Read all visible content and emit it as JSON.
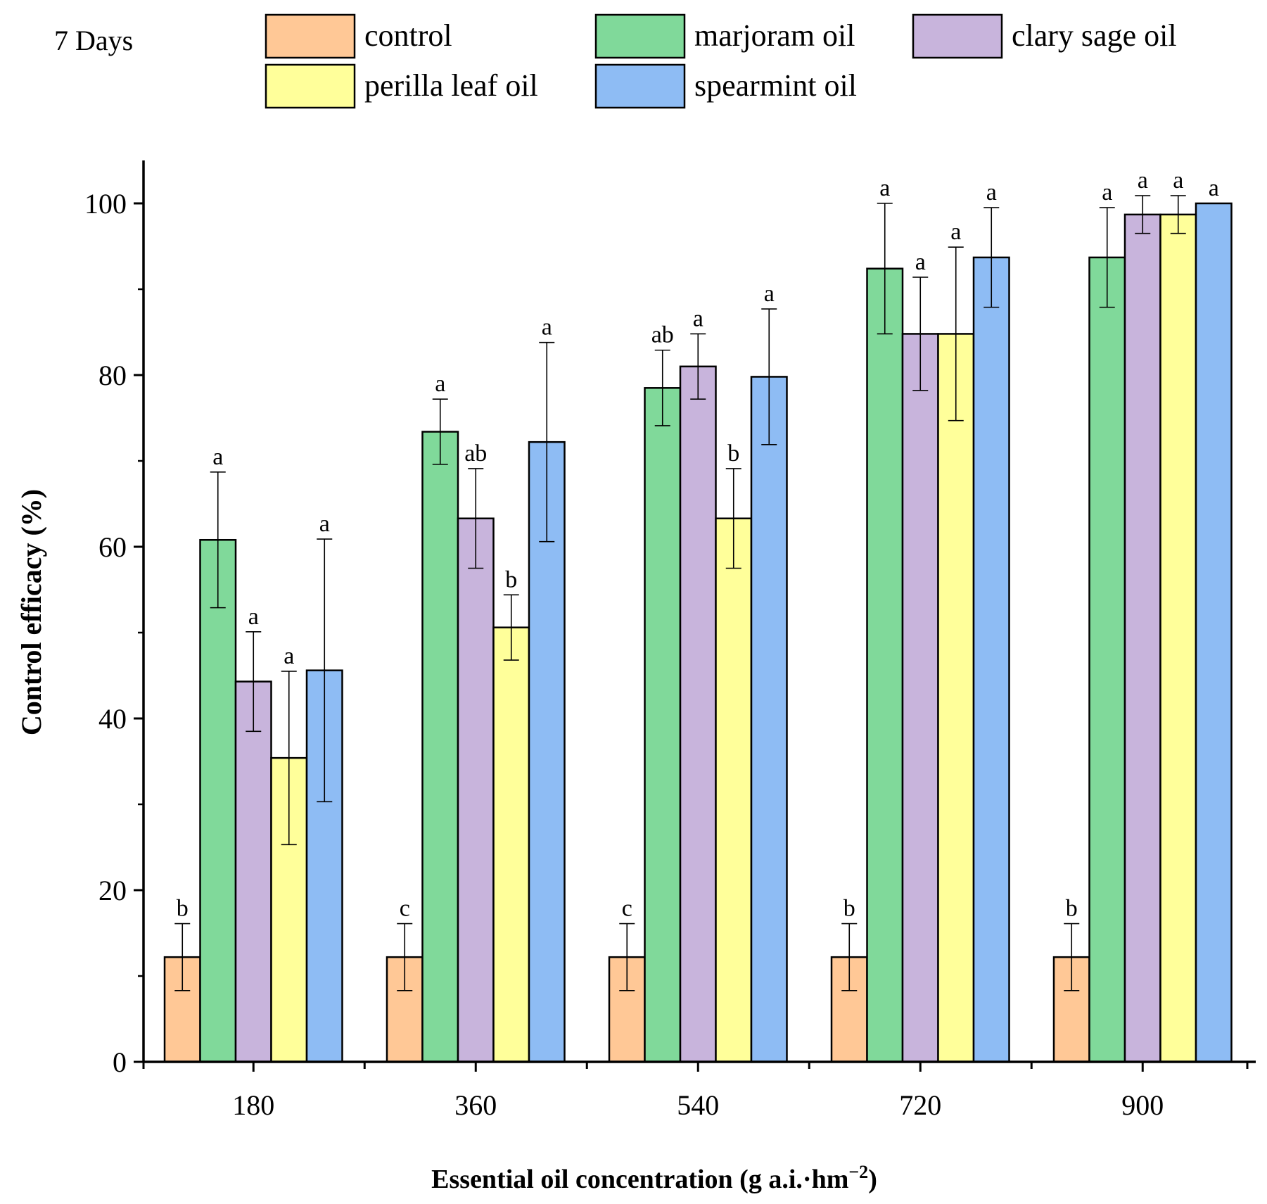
{
  "chart_data": {
    "type": "bar",
    "title": "7 Days",
    "xlabel": "Essential oil concentration (g a.i.·hm",
    "xlabel_sup": "−2",
    "xlabel_end": ")",
    "ylabel": "Control efficacy (%)",
    "ylim": [
      0,
      105
    ],
    "yticks": [
      0,
      20,
      40,
      60,
      80,
      100
    ],
    "yticks_minor": [
      10,
      30,
      50,
      70,
      90
    ],
    "categories": [
      "180",
      "360",
      "540",
      "720",
      "900"
    ],
    "legend_position": "top",
    "series": [
      {
        "name": "control",
        "color": "#FFC896",
        "values": [
          12.2,
          12.2,
          12.2,
          12.2,
          12.2
        ],
        "errors": [
          3.9,
          3.9,
          3.9,
          3.9,
          3.9
        ],
        "letters": [
          "b",
          "c",
          "c",
          "b",
          "b"
        ]
      },
      {
        "name": "marjoram oil",
        "color": "#80D99A",
        "values": [
          60.8,
          73.4,
          78.5,
          92.4,
          93.7
        ],
        "errors": [
          7.9,
          3.8,
          4.4,
          7.6,
          5.8
        ],
        "letters": [
          "a",
          "a",
          "ab",
          "a",
          "a"
        ]
      },
      {
        "name": "clary sage oil",
        "color": "#C8B4DC",
        "values": [
          44.3,
          63.3,
          81.0,
          84.8,
          98.7
        ],
        "errors": [
          5.8,
          5.8,
          3.8,
          6.6,
          2.2
        ],
        "letters": [
          "a",
          "ab",
          "a",
          "a",
          "a"
        ]
      },
      {
        "name": "perilla leaf oil",
        "color": "#FFFF9A",
        "values": [
          35.4,
          50.6,
          63.3,
          84.8,
          98.7
        ],
        "errors": [
          10.1,
          3.8,
          5.8,
          10.1,
          2.2
        ],
        "letters": [
          "a",
          "b",
          "b",
          "a",
          "a"
        ]
      },
      {
        "name": "spearmint oil",
        "color": "#8EBCF4",
        "values": [
          45.6,
          72.2,
          79.8,
          93.7,
          100.0
        ],
        "errors": [
          15.3,
          11.6,
          7.9,
          5.8,
          0
        ],
        "letters": [
          "a",
          "a",
          "a",
          "a",
          "a"
        ]
      }
    ]
  }
}
